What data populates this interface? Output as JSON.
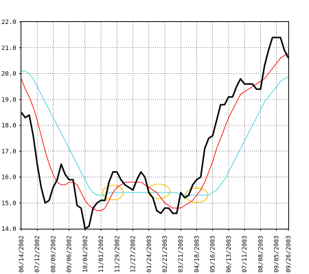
{
  "chart_data": {
    "type": "line",
    "title": "",
    "xlabel": "",
    "ylabel": "",
    "ylim": [
      14.0,
      22.0
    ],
    "grid": true,
    "yticks": [
      "14.0",
      "15.0",
      "16.0",
      "17.0",
      "18.0",
      "19.0",
      "20.0",
      "21.0",
      "22.0"
    ],
    "xtick_labels": [
      "06/14/2002",
      "07/12/2002",
      "08/09/2002",
      "09/06/2002",
      "10/04/2002",
      "11/01/2002",
      "11/29/2002",
      "12/27/2002",
      "01/24/2003",
      "02/21/2003",
      "03/21/2003",
      "04/18/2003",
      "05/16/2003",
      "06/13/2003",
      "07/11/2003",
      "08/08/2003",
      "09/05/2003",
      "09/26/2003"
    ],
    "xtick_weeks": [
      0,
      4,
      8,
      12,
      16,
      20,
      24,
      28,
      32,
      36,
      40,
      44,
      48,
      52,
      56,
      60,
      64,
      67
    ],
    "xlim_weeks": [
      0,
      67
    ],
    "series": [
      {
        "color": "#000000",
        "width": 2.2,
        "x": [
          0,
          1,
          2,
          3,
          4,
          5,
          6,
          7,
          8,
          9,
          10,
          11,
          12,
          13,
          14,
          15,
          16,
          17,
          18,
          19,
          20,
          21,
          22,
          23,
          24,
          25,
          26,
          27,
          28,
          29,
          30,
          31,
          32,
          33,
          34,
          35,
          36,
          37,
          38,
          39,
          40,
          41,
          42,
          43,
          44,
          45,
          46,
          47,
          48,
          49,
          50,
          51,
          52,
          53,
          54,
          55,
          56,
          57,
          58,
          59,
          60,
          61,
          62,
          63,
          64,
          65,
          66,
          67
        ],
        "values": [
          18.5,
          18.3,
          18.4,
          17.6,
          16.5,
          15.6,
          15.0,
          15.1,
          15.6,
          15.9,
          16.5,
          16.1,
          15.9,
          15.9,
          14.9,
          14.8,
          14.0,
          14.1,
          14.8,
          15.0,
          15.1,
          15.1,
          15.8,
          16.2,
          16.2,
          15.9,
          15.7,
          15.6,
          15.5,
          15.9,
          16.2,
          16.0,
          15.4,
          15.2,
          14.7,
          14.6,
          14.8,
          14.8,
          14.6,
          14.6,
          15.4,
          15.2,
          15.3,
          15.7,
          15.9,
          16.0,
          17.1,
          17.5,
          17.6,
          18.2,
          18.8,
          18.8,
          19.1,
          19.1,
          19.5,
          19.8,
          19.6,
          19.6,
          19.6,
          19.4,
          19.4,
          20.3,
          20.9,
          21.4,
          21.4,
          21.4,
          20.9,
          20.6
        ]
      },
      {
        "color": "#ff0000",
        "width": 1,
        "x": [
          0,
          1,
          2,
          3,
          4,
          5,
          6,
          7,
          8,
          9,
          10,
          11,
          12,
          13,
          14,
          15,
          16,
          17,
          18,
          19,
          20,
          21,
          22,
          23,
          24,
          25,
          26,
          27,
          28,
          29,
          30,
          31,
          32,
          33,
          34,
          35,
          36,
          37,
          38,
          39,
          40,
          41,
          42,
          43,
          44,
          45,
          46,
          47,
          48,
          49,
          50,
          51,
          52,
          53,
          54,
          55,
          56,
          57,
          58,
          59,
          60,
          61,
          62,
          63,
          64,
          65,
          66,
          67
        ],
        "values": [
          19.8,
          19.4,
          19.1,
          18.7,
          18.2,
          17.6,
          17.0,
          16.5,
          16.1,
          15.8,
          15.7,
          15.7,
          15.8,
          15.8,
          15.7,
          15.4,
          15.1,
          14.9,
          14.8,
          14.7,
          14.7,
          14.8,
          15.1,
          15.4,
          15.6,
          15.7,
          15.8,
          15.8,
          15.8,
          15.8,
          15.8,
          15.7,
          15.6,
          15.5,
          15.4,
          15.2,
          15.0,
          14.9,
          14.8,
          14.8,
          14.8,
          14.9,
          15.0,
          15.1,
          15.3,
          15.5,
          15.8,
          16.2,
          16.6,
          17.1,
          17.5,
          17.9,
          18.3,
          18.6,
          18.9,
          19.2,
          19.3,
          19.4,
          19.5,
          19.6,
          19.7,
          19.8,
          20.0,
          20.2,
          20.4,
          20.6,
          20.7,
          20.8
        ]
      },
      {
        "color": "#40d0e0",
        "width": 1,
        "x": [
          0,
          1,
          2,
          3,
          4,
          5,
          6,
          7,
          8,
          9,
          10,
          11,
          12,
          13,
          14,
          15,
          16,
          17,
          18,
          19,
          20,
          21,
          22,
          23,
          24,
          25,
          26,
          27,
          28,
          29,
          30,
          31,
          32,
          33,
          34,
          35,
          36,
          37,
          38,
          39,
          40,
          41,
          42,
          43,
          44,
          45,
          46,
          47,
          48,
          49,
          50,
          51,
          52,
          53,
          54,
          55,
          56,
          57,
          58,
          59,
          60,
          61,
          62,
          63,
          64,
          65,
          66,
          67
        ],
        "values": [
          20.1,
          20.1,
          20.0,
          19.8,
          19.5,
          19.2,
          18.9,
          18.6,
          18.3,
          18.0,
          17.7,
          17.4,
          17.1,
          16.8,
          16.5,
          16.2,
          15.9,
          15.6,
          15.4,
          15.3,
          15.3,
          15.3,
          15.4,
          15.4,
          15.4,
          15.4,
          15.4,
          15.4,
          15.4,
          15.4,
          15.4,
          15.4,
          15.4,
          15.4,
          15.4,
          15.4,
          15.4,
          15.4,
          15.4,
          15.4,
          15.3,
          15.3,
          15.3,
          15.3,
          15.3,
          15.3,
          15.3,
          15.3,
          15.4,
          15.5,
          15.7,
          15.9,
          16.2,
          16.5,
          16.8,
          17.1,
          17.4,
          17.7,
          18.0,
          18.3,
          18.6,
          18.9,
          19.1,
          19.3,
          19.5,
          19.7,
          19.8,
          19.9
        ]
      }
    ],
    "annotations": [
      {
        "shape": "ellipse",
        "color": "#ffc000",
        "cx_week": 23,
        "cy": 15.4,
        "rx_weeks": 2.6,
        "ry": 0.28
      },
      {
        "shape": "ellipse",
        "color": "#ffc000",
        "cx_week": 34.5,
        "cy": 15.45,
        "rx_weeks": 2.8,
        "ry": 0.28
      },
      {
        "shape": "ellipse",
        "color": "#ffc000",
        "cx_week": 44,
        "cy": 15.3,
        "rx_weeks": 2.8,
        "ry": 0.28
      }
    ]
  }
}
